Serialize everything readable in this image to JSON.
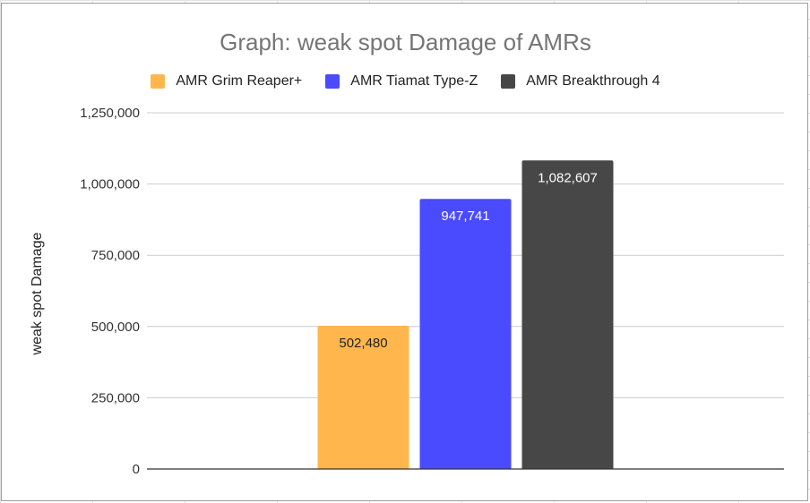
{
  "chart_data": {
    "type": "bar",
    "title": "Graph: weak spot Damage of AMRs",
    "xlabel": "",
    "ylabel": "weak spot Damage",
    "ylim": [
      0,
      1250000
    ],
    "yticks": [
      0,
      250000,
      500000,
      750000,
      1000000,
      1250000
    ],
    "ytick_labels": [
      "0",
      "250,000",
      "500,000",
      "750,000",
      "1,000,000",
      "1,250,000"
    ],
    "grid": true,
    "legend_position": "top",
    "series": [
      {
        "name": "AMR Grim Reaper+",
        "value": 502480,
        "label": "502,480",
        "color": "#ffb74d",
        "label_color": "#222222"
      },
      {
        "name": "AMR Tiamat Type-Z",
        "value": 947741,
        "label": "947,741",
        "color": "#4a4aff",
        "label_color": "#ffffff"
      },
      {
        "name": "AMR Breakthrough 4",
        "value": 1082607,
        "label": "1,082,607",
        "color": "#474747",
        "label_color": "#ffffff"
      }
    ]
  }
}
